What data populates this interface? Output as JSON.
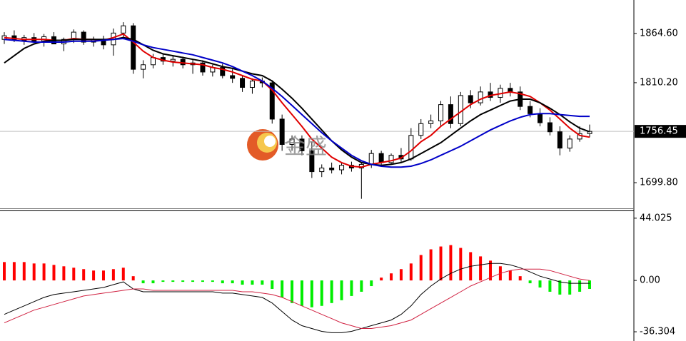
{
  "chart_data": [
    {
      "type": "candlestick",
      "watermark": "金盛",
      "open": [
        1858,
        1862,
        1857,
        1860,
        1856,
        1861,
        1853,
        1858,
        1866,
        1855,
        1858,
        1852,
        1865,
        1873,
        1825,
        1830,
        1838,
        1834,
        1836,
        1830,
        1832,
        1822,
        1827,
        1818,
        1815,
        1805,
        1812,
        1810,
        1770,
        1742,
        1748,
        1735,
        1712,
        1716,
        1714,
        1719,
        1716,
        1720,
        1732,
        1722,
        1730,
        1726,
        1752,
        1765,
        1768,
        1786,
        1765,
        1796,
        1788,
        1800,
        1794,
        1804,
        1800,
        1784,
        1776,
        1766,
        1756,
        1738,
        1748,
        1754
      ],
      "high": [
        1866,
        1868,
        1863,
        1865,
        1864,
        1866,
        1860,
        1869,
        1868,
        1861,
        1862,
        1870,
        1877,
        1876,
        1835,
        1842,
        1842,
        1840,
        1839,
        1836,
        1835,
        1830,
        1831,
        1825,
        1818,
        1815,
        1816,
        1813,
        1775,
        1752,
        1752,
        1745,
        1720,
        1722,
        1722,
        1723,
        1722,
        1736,
        1735,
        1732,
        1738,
        1760,
        1770,
        1775,
        1790,
        1795,
        1800,
        1802,
        1806,
        1810,
        1808,
        1810,
        1806,
        1790,
        1782,
        1772,
        1762,
        1752,
        1762,
        1764
      ],
      "low": [
        1853,
        1855,
        1852,
        1854,
        1850,
        1855,
        1845,
        1854,
        1852,
        1850,
        1847,
        1840,
        1858,
        1820,
        1815,
        1826,
        1830,
        1828,
        1826,
        1820,
        1818,
        1817,
        1815,
        1810,
        1800,
        1798,
        1805,
        1765,
        1735,
        1735,
        1730,
        1705,
        1706,
        1710,
        1709,
        1712,
        1682,
        1716,
        1718,
        1720,
        1722,
        1724,
        1748,
        1760,
        1762,
        1760,
        1762,
        1782,
        1785,
        1790,
        1788,
        1795,
        1780,
        1772,
        1762,
        1752,
        1730,
        1734,
        1745,
        1750
      ],
      "close": [
        1862,
        1857,
        1860,
        1856,
        1861,
        1853,
        1858,
        1866,
        1855,
        1858,
        1852,
        1865,
        1873,
        1825,
        1830,
        1838,
        1834,
        1836,
        1830,
        1832,
        1822,
        1827,
        1818,
        1815,
        1805,
        1812,
        1810,
        1770,
        1742,
        1748,
        1735,
        1712,
        1716,
        1714,
        1719,
        1716,
        1720,
        1732,
        1722,
        1730,
        1726,
        1752,
        1765,
        1768,
        1786,
        1765,
        1796,
        1788,
        1800,
        1794,
        1804,
        1800,
        1784,
        1776,
        1766,
        1756,
        1738,
        1748,
        1754,
        1756.45
      ],
      "series": [
        {
          "color": "#e00000",
          "values": [
            1860,
            1859,
            1858,
            1858,
            1858,
            1857,
            1857,
            1859,
            1858,
            1858,
            1857,
            1860,
            1864,
            1855,
            1845,
            1838,
            1835,
            1833,
            1832,
            1831,
            1830,
            1827,
            1825,
            1822,
            1818,
            1814,
            1812,
            1802,
            1788,
            1775,
            1762,
            1748,
            1738,
            1728,
            1722,
            1718,
            1717,
            1720,
            1722,
            1724,
            1727,
            1735,
            1745,
            1752,
            1762,
            1770,
            1778,
            1786,
            1792,
            1796,
            1798,
            1800,
            1798,
            1795,
            1788,
            1780,
            1770,
            1760,
            1752,
            1750
          ]
        },
        {
          "color": "#000000",
          "values": [
            1832,
            1840,
            1848,
            1853,
            1856,
            1857,
            1857,
            1858,
            1858,
            1858,
            1858,
            1858,
            1860,
            1858,
            1852,
            1846,
            1842,
            1840,
            1838,
            1836,
            1834,
            1831,
            1828,
            1826,
            1823,
            1820,
            1818,
            1812,
            1803,
            1793,
            1782,
            1770,
            1758,
            1746,
            1736,
            1728,
            1722,
            1720,
            1719,
            1720,
            1722,
            1726,
            1732,
            1738,
            1744,
            1752,
            1760,
            1768,
            1775,
            1780,
            1785,
            1790,
            1792,
            1792,
            1788,
            1782,
            1775,
            1767,
            1760,
            1756
          ]
        },
        {
          "color": "#0000c8",
          "values": [
            1858,
            1857,
            1856,
            1855,
            1855,
            1855,
            1855,
            1856,
            1856,
            1856,
            1857,
            1858,
            1859,
            1856,
            1852,
            1849,
            1847,
            1845,
            1843,
            1841,
            1838,
            1835,
            1832,
            1828,
            1823,
            1818,
            1812,
            1804,
            1795,
            1785,
            1775,
            1765,
            1755,
            1746,
            1738,
            1730,
            1724,
            1720,
            1718,
            1717,
            1717,
            1718,
            1721,
            1725,
            1730,
            1735,
            1740,
            1746,
            1752,
            1758,
            1763,
            1768,
            1772,
            1775,
            1776,
            1776,
            1775,
            1774,
            1773,
            1773
          ]
        }
      ],
      "last_price": 1756.45,
      "ylim": [
        1671.5,
        1901.5
      ],
      "yticks": [
        {
          "value": 1864.6,
          "label": "1864.60"
        },
        {
          "value": 1810.2,
          "label": "1810.20"
        },
        {
          "value": 1699.8,
          "label": "1699.80"
        }
      ]
    },
    {
      "type": "macd",
      "histogram": [
        13,
        13,
        13,
        12,
        12,
        11,
        10,
        9,
        8,
        7,
        7,
        8,
        9,
        3,
        -2,
        -2,
        -1,
        -1,
        -1,
        -1,
        -1,
        -1,
        -2,
        -2,
        -3,
        -3,
        -3,
        -6,
        -12,
        -16,
        -18,
        -19,
        -18,
        -16,
        -14,
        -11,
        -8,
        -4,
        2,
        5,
        8,
        12,
        18,
        22,
        24,
        25,
        23,
        20,
        17,
        14,
        10,
        7,
        3,
        -2,
        -5,
        -8,
        -10,
        -10,
        -8,
        -6
      ],
      "up_color": "#ff0000",
      "down_color": "#00ee00",
      "series": [
        {
          "color": "#000000",
          "values": [
            -24,
            -21,
            -18,
            -15,
            -12,
            -10,
            -9,
            -8,
            -7,
            -6,
            -5,
            -3,
            -1,
            -6,
            -8,
            -8,
            -8,
            -8,
            -8,
            -8,
            -8,
            -8,
            -9,
            -9,
            -10,
            -11,
            -12,
            -16,
            -22,
            -28,
            -32,
            -34,
            -36,
            -37,
            -37,
            -36,
            -34,
            -32,
            -30,
            -28,
            -24,
            -18,
            -10,
            -4,
            1,
            5,
            8,
            10,
            11,
            12,
            12,
            11,
            9,
            6,
            3,
            1,
            -1,
            -2,
            -2,
            -2
          ]
        },
        {
          "color": "#d02040",
          "values": [
            -30,
            -27,
            -24,
            -21,
            -19,
            -17,
            -15,
            -13,
            -11,
            -10,
            -9,
            -8,
            -7,
            -6,
            -6,
            -7,
            -7,
            -7,
            -7,
            -7,
            -7,
            -7,
            -7,
            -7,
            -8,
            -8,
            -9,
            -10,
            -12,
            -15,
            -18,
            -21,
            -24,
            -27,
            -30,
            -32,
            -34,
            -34,
            -33,
            -32,
            -30,
            -28,
            -24,
            -20,
            -16,
            -12,
            -8,
            -4,
            -1,
            2,
            5,
            7,
            8,
            8,
            8,
            7,
            5,
            3,
            1,
            0
          ]
        }
      ],
      "ylim": [
        -38.8,
        49.5
      ],
      "yticks": [
        44.025,
        {
          "value": 0,
          "label": "0.00"
        },
        -36.304
      ]
    }
  ]
}
